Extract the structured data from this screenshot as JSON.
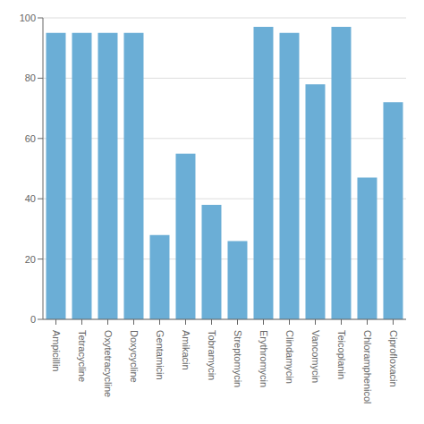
{
  "chart_data": {
    "type": "bar",
    "categories": [
      "Ampicillin",
      "Tetracycline",
      "Oxytetracycline",
      "Doxycycline",
      "Gentamicin",
      "Amikacin",
      "Tobramycin",
      "Streptomycin",
      "Erythromycin",
      "Clindamycin",
      "Vancomycin",
      "Teicoplanin",
      "Chloramphenicol",
      "Ciprofloxacin"
    ],
    "values": [
      95,
      95,
      95,
      95,
      28,
      55,
      38,
      26,
      97,
      95,
      78,
      97,
      47,
      72
    ],
    "color": "#6baed6",
    "ylim": [
      0,
      100
    ],
    "yticks": [
      0,
      20,
      40,
      60,
      80,
      100
    ],
    "grid": true
  }
}
